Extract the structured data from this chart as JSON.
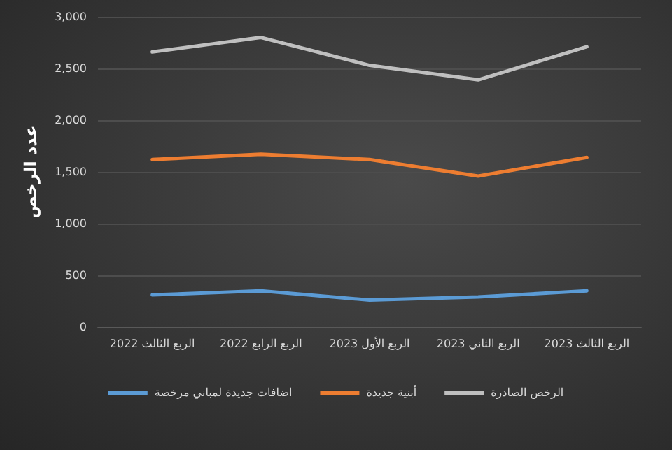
{
  "chart_data": {
    "type": "line",
    "ylabel": "عدد الرخص",
    "categories": [
      "الربع الثالث 2022",
      "الربع الرابع 2022",
      "الربع الأول 2023",
      "الربع الثاني 2023",
      "الربع الثالث 2023"
    ],
    "series": [
      {
        "name": "الرخص الصادرة",
        "color": "#bfbfbf",
        "values": [
          2660,
          2800,
          2530,
          2390,
          2710
        ]
      },
      {
        "name": "أبنية جديدة",
        "color": "#ed7d31",
        "values": [
          1620,
          1670,
          1620,
          1460,
          1640
        ]
      },
      {
        "name": "اضافات جديدة لمباني مرخصة",
        "color": "#5b9bd5",
        "values": [
          310,
          350,
          260,
          290,
          350
        ]
      }
    ],
    "ylim": [
      0,
      3000
    ],
    "yticks": [
      0,
      500,
      {
        "value": 1000,
        "label": "1,000"
      },
      {
        "value": 1500,
        "label": "1,500"
      },
      {
        "value": 2000,
        "label": "2,000"
      },
      {
        "value": 2500,
        "label": "2,500"
      },
      {
        "value": 3000,
        "label": "3,000"
      }
    ],
    "grid": "y",
    "legend": "bottom",
    "marker": "none",
    "line_style": "solid"
  }
}
